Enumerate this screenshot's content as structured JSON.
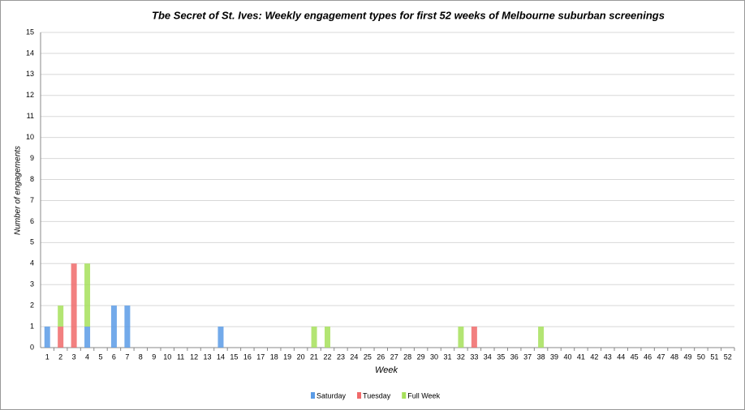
{
  "chart_data": {
    "type": "stacked-bar",
    "title": "Tbe Secret of St. Ives: Weekly engagement types for first 52 weeks of Melbourne suburban screenings",
    "x_label": "Week",
    "y_label": "Number of engagements",
    "categories": [
      1,
      2,
      3,
      4,
      5,
      6,
      7,
      8,
      9,
      10,
      11,
      12,
      13,
      14,
      15,
      16,
      17,
      18,
      19,
      20,
      21,
      22,
      23,
      24,
      25,
      26,
      27,
      28,
      29,
      30,
      31,
      32,
      33,
      34,
      35,
      36,
      37,
      38,
      39,
      40,
      41,
      42,
      43,
      44,
      45,
      46,
      47,
      48,
      49,
      50,
      51,
      52
    ],
    "series": [
      {
        "name": "Saturday",
        "color": "#5a9be6",
        "values": [
          1,
          0,
          0,
          1,
          0,
          2,
          2,
          0,
          0,
          0,
          0,
          0,
          0,
          1,
          0,
          0,
          0,
          0,
          0,
          0,
          0,
          0,
          0,
          0,
          0,
          0,
          0,
          0,
          0,
          0,
          0,
          0,
          0,
          0,
          0,
          0,
          0,
          0,
          0,
          0,
          0,
          0,
          0,
          0,
          0,
          0,
          0,
          0,
          0,
          0,
          0,
          0
        ]
      },
      {
        "name": "Tuesday",
        "color": "#f06a6a",
        "values": [
          0,
          1,
          4,
          0,
          0,
          0,
          0,
          0,
          0,
          0,
          0,
          0,
          0,
          0,
          0,
          0,
          0,
          0,
          0,
          0,
          0,
          0,
          0,
          0,
          0,
          0,
          0,
          0,
          0,
          0,
          0,
          0,
          1,
          0,
          0,
          0,
          0,
          0,
          0,
          0,
          0,
          0,
          0,
          0,
          0,
          0,
          0,
          0,
          0,
          0,
          0,
          0
        ]
      },
      {
        "name": "Full Week",
        "color": "#a6e05a",
        "values": [
          0,
          1,
          0,
          3,
          0,
          0,
          0,
          0,
          0,
          0,
          0,
          0,
          0,
          0,
          0,
          0,
          0,
          0,
          0,
          0,
          1,
          1,
          0,
          0,
          0,
          0,
          0,
          0,
          0,
          0,
          0,
          1,
          0,
          0,
          0,
          0,
          0,
          1,
          0,
          0,
          0,
          0,
          0,
          0,
          0,
          0,
          0,
          0,
          0,
          0,
          0,
          0
        ]
      }
    ],
    "ylim": [
      0,
      15
    ],
    "yticks": [
      0,
      1,
      2,
      3,
      4,
      5,
      6,
      7,
      8,
      9,
      10,
      11,
      12,
      13,
      14,
      15
    ],
    "grid": true,
    "legend": "bottom"
  }
}
